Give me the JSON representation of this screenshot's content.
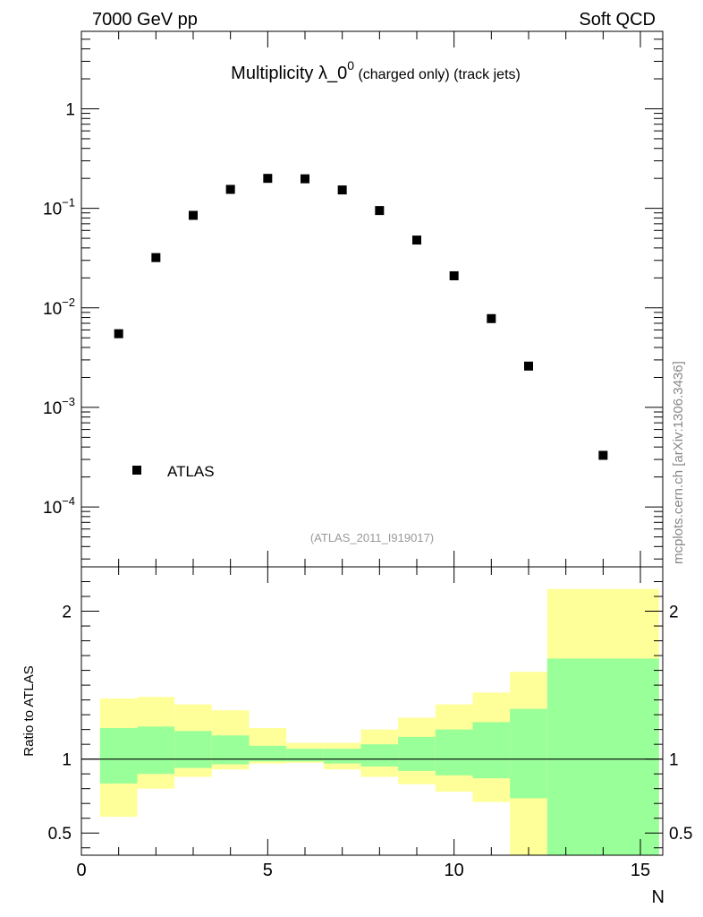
{
  "header": {
    "left": "7000 GeV pp",
    "right": "Soft QCD"
  },
  "side_label": "mcplots.cern.ch [arXiv:1306.3436]",
  "analysis_id": "(ATLAS_2011_I919017)",
  "chart_data": [
    {
      "type": "scatter",
      "title_main": "Multiplicity λ_0",
      "title_sup": "0",
      "title_rest": " (charged only) (track jets)",
      "yscale": "log",
      "ylim": [
        2.5e-05,
        6.0
      ],
      "xlim": [
        0,
        15.6
      ],
      "ytick_values": [
        1,
        0.1,
        0.01,
        0.001,
        0.0001
      ],
      "ytick_labels": [
        {
          "base": "1",
          "exp": ""
        },
        {
          "base": "10",
          "exp": "−1"
        },
        {
          "base": "10",
          "exp": "−2"
        },
        {
          "base": "10",
          "exp": "−3"
        },
        {
          "base": "10",
          "exp": "−4"
        }
      ],
      "legend": {
        "label": "ATLAS",
        "placement": "bottom-left"
      },
      "series": [
        {
          "name": "ATLAS",
          "x": [
            1,
            2,
            3,
            4,
            5,
            6,
            7,
            8,
            9,
            10,
            11,
            12,
            14
          ],
          "values": [
            0.0055,
            0.032,
            0.085,
            0.155,
            0.2,
            0.198,
            0.153,
            0.095,
            0.048,
            0.021,
            0.0078,
            0.0026,
            0.00033
          ]
        }
      ]
    },
    {
      "type": "area",
      "ylabel": "Ratio to ATLAS",
      "xlabel": "N",
      "ylim": [
        0.35,
        2.3
      ],
      "xlim": [
        0,
        15.6
      ],
      "xtick_labels": [
        "0",
        "5",
        "10",
        "15"
      ],
      "xtick_values": [
        0,
        5,
        10,
        15
      ],
      "ytick_labels": [
        "0.5",
        "1",
        "2"
      ],
      "ytick_values": [
        0.5,
        1,
        2
      ],
      "reference_line": 1,
      "bins": [
        {
          "lo": 0.5,
          "hi": 1.5,
          "green": [
            0.835,
            1.21
          ],
          "yellow": [
            0.61,
            1.41
          ]
        },
        {
          "lo": 1.5,
          "hi": 2.5,
          "green": [
            0.9,
            1.22
          ],
          "yellow": [
            0.8,
            1.42
          ]
        },
        {
          "lo": 2.5,
          "hi": 3.5,
          "green": [
            0.94,
            1.19
          ],
          "yellow": [
            0.88,
            1.37
          ]
        },
        {
          "lo": 3.5,
          "hi": 4.5,
          "green": [
            0.965,
            1.16
          ],
          "yellow": [
            0.93,
            1.33
          ]
        },
        {
          "lo": 4.5,
          "hi": 5.5,
          "green": [
            0.985,
            1.09
          ],
          "yellow": [
            0.97,
            1.21
          ]
        },
        {
          "lo": 5.5,
          "hi": 6.5,
          "green": [
            0.985,
            1.07
          ],
          "yellow": [
            0.975,
            1.11
          ]
        },
        {
          "lo": 6.5,
          "hi": 7.5,
          "green": [
            0.97,
            1.07
          ],
          "yellow": [
            0.93,
            1.11
          ]
        },
        {
          "lo": 7.5,
          "hi": 8.5,
          "green": [
            0.95,
            1.1
          ],
          "yellow": [
            0.88,
            1.2
          ]
        },
        {
          "lo": 8.5,
          "hi": 9.5,
          "green": [
            0.92,
            1.15
          ],
          "yellow": [
            0.83,
            1.28
          ]
        },
        {
          "lo": 9.5,
          "hi": 10.5,
          "green": [
            0.89,
            1.2
          ],
          "yellow": [
            0.78,
            1.37
          ]
        },
        {
          "lo": 10.5,
          "hi": 11.5,
          "green": [
            0.87,
            1.25
          ],
          "yellow": [
            0.71,
            1.45
          ]
        },
        {
          "lo": 11.5,
          "hi": 12.5,
          "green": [
            0.735,
            1.34
          ],
          "yellow": [
            0.35,
            1.59
          ]
        },
        {
          "lo": 12.5,
          "hi": 15.5,
          "green": [
            0.35,
            1.68
          ],
          "yellow": [
            0.35,
            2.15
          ]
        }
      ]
    }
  ],
  "colors": {
    "green_band": "#99ff99",
    "yellow_band": "#ffff99",
    "marker": "#000000",
    "analysis_text": "#999999"
  }
}
